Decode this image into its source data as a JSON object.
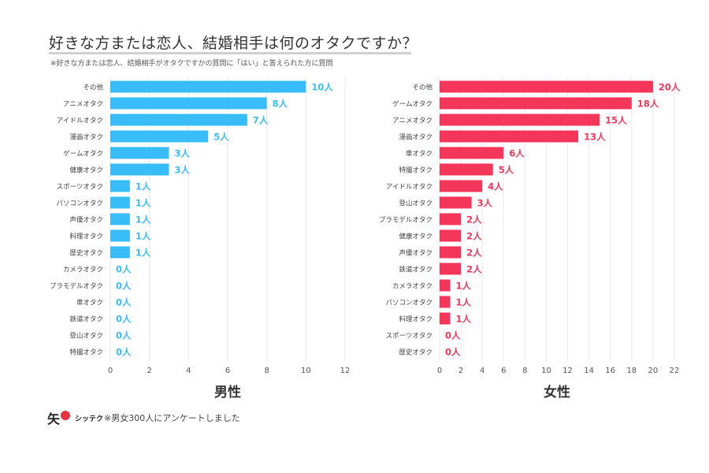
{
  "title": "好きな方または恋人、結婚相手は何のオタクですか？",
  "subtitle": "※好きな方または恋人、結婚相手がオタクですかの質問に「はい」と答えられた方に質問",
  "footer": {
    "logo_mark": "矢",
    "logo_text": "シッテク",
    "note": "※男女300人にアンケートしました"
  },
  "colors": {
    "male": "#38bdf8",
    "female": "#f4365a",
    "grid": "#e9e9e9"
  },
  "chart_data": [
    {
      "type": "bar",
      "orientation": "horizontal",
      "xlabel": "男性",
      "value_suffix": "人",
      "xlim": [
        0,
        12
      ],
      "xticks": [
        0,
        2,
        4,
        6,
        8,
        10,
        12
      ],
      "grid": true,
      "categories": [
        "その他",
        "アニメオタク",
        "アイドルオタク",
        "漫画オタク",
        "ゲームオタク",
        "健康オタク",
        "スポーツオタク",
        "パソコンオタク",
        "声優オタク",
        "料理オタク",
        "歴史オタク",
        "カメラオタク",
        "プラモデルオタク",
        "車オタク",
        "鉄道オタク",
        "登山オタク",
        "特撮オタク"
      ],
      "values": [
        10,
        8,
        7,
        5,
        3,
        3,
        1,
        1,
        1,
        1,
        1,
        0,
        0,
        0,
        0,
        0,
        0
      ]
    },
    {
      "type": "bar",
      "orientation": "horizontal",
      "xlabel": "女性",
      "value_suffix": "人",
      "xlim": [
        0,
        22
      ],
      "xticks": [
        0,
        2,
        4,
        6,
        8,
        10,
        12,
        14,
        16,
        18,
        20,
        22
      ],
      "grid": true,
      "categories": [
        "その他",
        "ゲームオタク",
        "アニメオタク",
        "漫画オタク",
        "車オタク",
        "特撮オタク",
        "アイドルオタク",
        "登山オタク",
        "プラモデルオタク",
        "健康オタク",
        "声優オタク",
        "鉄道オタク",
        "カメラオタク",
        "パソコンオタク",
        "料理オタク",
        "スポーツオタク",
        "歴史オタク"
      ],
      "values": [
        20,
        18,
        15,
        13,
        6,
        5,
        4,
        3,
        2,
        2,
        2,
        2,
        1,
        1,
        1,
        0,
        0
      ]
    }
  ]
}
